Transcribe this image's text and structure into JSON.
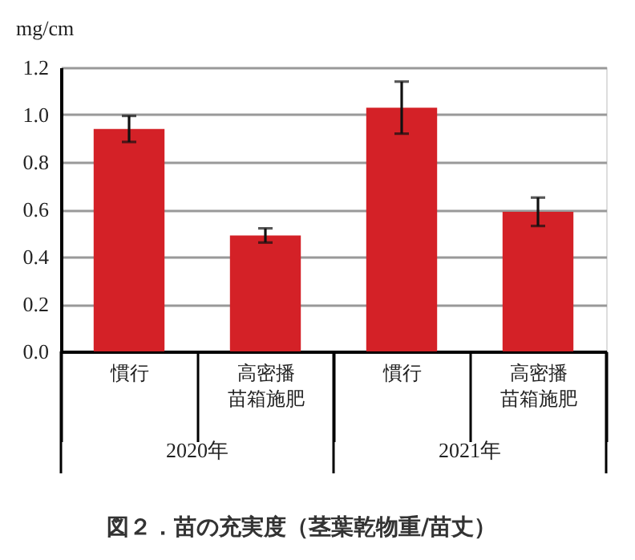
{
  "chart_data": {
    "type": "bar",
    "title": "図２．苗の充実度（茎葉乾物重/苗丈）",
    "ylabel": "mg/cm",
    "categories": [
      "慣行",
      "高密播苗箱施肥",
      "慣行",
      "高密播苗箱施肥"
    ],
    "values": [
      0.94,
      0.49,
      1.03,
      0.59
    ],
    "errors": [
      0.055,
      0.03,
      0.11,
      0.06
    ],
    "color": "#d42127",
    "ylim": [
      0,
      1.2
    ],
    "yticks": [
      {
        "value": 0,
        "label": "0.0"
      },
      {
        "value": 0.2,
        "label": "0.2"
      },
      {
        "value": 0.4,
        "label": "0.4"
      },
      {
        "value": 0.6,
        "label": "0.6"
      },
      {
        "value": 0.8,
        "label": "0.8"
      },
      {
        "value": 1,
        "label": "1.0"
      },
      {
        "value": 1.2,
        "label": "1.2"
      }
    ],
    "grid": "y",
    "annotations": [
      "2020年",
      "2021年"
    ]
  }
}
